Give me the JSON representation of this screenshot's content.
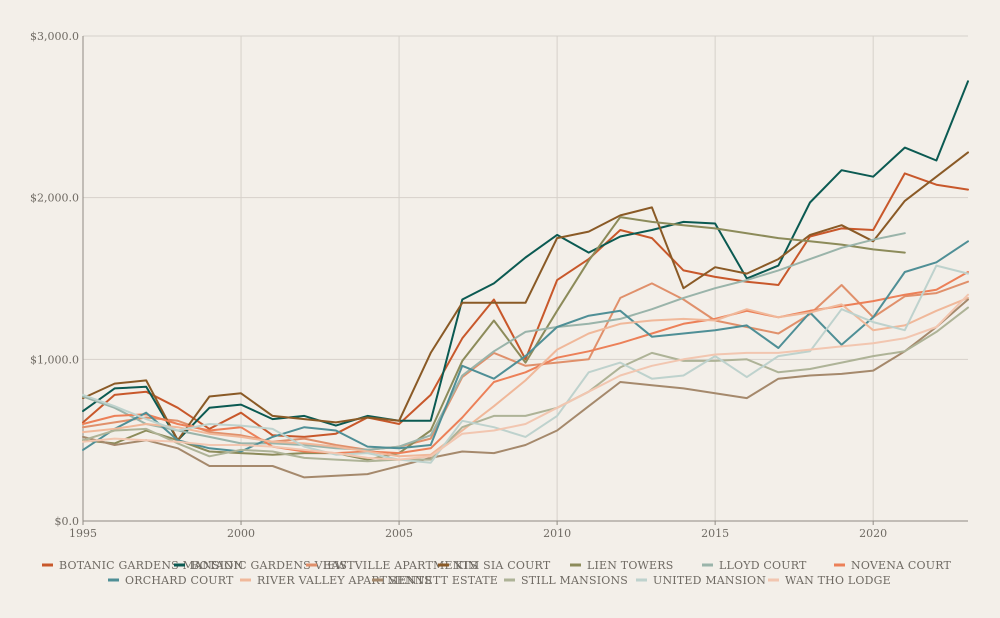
{
  "chart_data": {
    "type": "line",
    "title": "",
    "xlabel": "",
    "ylabel": "",
    "xlim": [
      1995,
      2023
    ],
    "ylim": [
      0,
      3000
    ],
    "x_ticks": [
      1995,
      2000,
      2005,
      2010,
      2015,
      2020
    ],
    "x_tick_labels": [
      "1995",
      "2000",
      "2005",
      "2010",
      "2015",
      "2020"
    ],
    "y_ticks": [
      0,
      1000,
      2000,
      3000
    ],
    "y_tick_labels": [
      "$0.0",
      "$1,000.0",
      "$2,000.0",
      "$3,000.0"
    ],
    "grid": true,
    "legend_position": "bottom",
    "x": [
      1995,
      1996,
      1997,
      1998,
      1999,
      2000,
      2001,
      2002,
      2003,
      2004,
      2005,
      2006,
      2007,
      2008,
      2009,
      2010,
      2011,
      2012,
      2013,
      2014,
      2015,
      2016,
      2017,
      2018,
      2019,
      2020,
      2021,
      2022,
      2023
    ],
    "series": [
      {
        "name": "BOTANIC GARDENS MANSION",
        "color": "#c8582b",
        "values": [
          610,
          780,
          800,
          700,
          570,
          670,
          530,
          520,
          540,
          640,
          600,
          780,
          1130,
          1370,
          1000,
          1490,
          1620,
          1800,
          1750,
          1550,
          1510,
          1480,
          1460,
          1760,
          1810,
          1800,
          2150,
          2080,
          2050
        ]
      },
      {
        "name": "BOTANIC GARDENS VIEW",
        "color": "#0b5a52",
        "values": [
          680,
          820,
          830,
          500,
          700,
          720,
          630,
          650,
          590,
          650,
          620,
          620,
          1370,
          1470,
          1630,
          1770,
          1660,
          1760,
          1800,
          1850,
          1840,
          1500,
          1580,
          1970,
          2170,
          2130,
          2310,
          2230,
          2720
        ]
      },
      {
        "name": "EASTVILLE APARTMENTS",
        "color": "#e0906b",
        "values": [
          580,
          610,
          640,
          620,
          550,
          530,
          490,
          510,
          470,
          440,
          460,
          510,
          890,
          1040,
          960,
          980,
          1000,
          1380,
          1470,
          1370,
          1240,
          1200,
          1160,
          1280,
          1460,
          1260,
          1390,
          1410,
          1480
        ]
      },
      {
        "name": "KIM SIA COURT",
        "color": "#8a5a26",
        "values": [
          760,
          850,
          870,
          500,
          770,
          790,
          650,
          630,
          610,
          640,
          620,
          1040,
          1350,
          1350,
          1350,
          1750,
          1790,
          1890,
          1940,
          1440,
          1570,
          1530,
          1620,
          1770,
          1830,
          1730,
          1980,
          2130,
          2280
        ]
      },
      {
        "name": "LIEN TOWERS",
        "color": "#8c8b5a",
        "values": [
          500,
          480,
          560,
          500,
          430,
          420,
          410,
          420,
          420,
          380,
          420,
          560,
          990,
          1240,
          980,
          1300,
          1610,
          1880,
          1850,
          1830,
          1810,
          1780,
          1750,
          1730,
          1710,
          1680,
          1660,
          null,
          null
        ]
      },
      {
        "name": "LLOYD COURT",
        "color": "#9ab4aa",
        "values": [
          770,
          700,
          600,
          560,
          520,
          480,
          480,
          470,
          450,
          440,
          460,
          530,
          900,
          1050,
          1170,
          1200,
          1220,
          1250,
          1310,
          1380,
          1440,
          1490,
          1550,
          1620,
          1690,
          1740,
          1780,
          null,
          null
        ]
      },
      {
        "name": "NOVENA COURT",
        "color": "#ec8058",
        "values": [
          600,
          650,
          660,
          600,
          560,
          580,
          460,
          430,
          420,
          430,
          420,
          450,
          640,
          860,
          920,
          1010,
          1050,
          1100,
          1160,
          1220,
          1250,
          1300,
          1260,
          1300,
          1330,
          1360,
          1400,
          1430,
          1540
        ]
      },
      {
        "name": "ORCHARD COURT",
        "color": "#4f8f96",
        "values": [
          440,
          570,
          670,
          500,
          450,
          430,
          520,
          580,
          560,
          460,
          450,
          470,
          960,
          880,
          1020,
          1200,
          1270,
          1300,
          1140,
          1160,
          1180,
          1210,
          1070,
          1290,
          1090,
          1260,
          1540,
          1600,
          1730
        ]
      },
      {
        "name": "RIVER VALLEY APARTMENTS",
        "color": "#f0b89a",
        "values": [
          550,
          570,
          600,
          580,
          540,
          520,
          490,
          480,
          460,
          430,
          400,
          410,
          560,
          710,
          870,
          1060,
          1160,
          1220,
          1240,
          1250,
          1240,
          1310,
          1260,
          1290,
          1340,
          1180,
          1210,
          1300,
          1380
        ]
      },
      {
        "name": "SENNETT ESTATE",
        "color": "#a5896c",
        "values": [
          520,
          470,
          500,
          450,
          340,
          340,
          340,
          270,
          280,
          290,
          340,
          390,
          430,
          420,
          470,
          560,
          710,
          860,
          840,
          820,
          790,
          760,
          880,
          900,
          910,
          930,
          1050,
          1200,
          1370
        ]
      },
      {
        "name": "STILL MANSIONS",
        "color": "#aeb397",
        "values": [
          500,
          560,
          570,
          480,
          400,
          440,
          430,
          390,
          380,
          370,
          380,
          380,
          580,
          650,
          650,
          700,
          800,
          950,
          1040,
          990,
          990,
          1000,
          920,
          940,
          980,
          1020,
          1050,
          1170,
          1320
        ]
      },
      {
        "name": "UNITED MANSION",
        "color": "#bed2cd",
        "values": [
          780,
          710,
          630,
          560,
          600,
          590,
          570,
          460,
          410,
          420,
          380,
          360,
          620,
          580,
          520,
          650,
          920,
          980,
          880,
          900,
          1020,
          890,
          1020,
          1050,
          1310,
          1230,
          1180,
          1580,
          1530
        ]
      },
      {
        "name": "WAN THO LODGE",
        "color": "#f2c6b0",
        "values": [
          490,
          510,
          500,
          490,
          470,
          470,
          460,
          440,
          420,
          390,
          380,
          400,
          540,
          560,
          600,
          700,
          800,
          900,
          960,
          1000,
          1030,
          1040,
          1040,
          1060,
          1080,
          1100,
          1130,
          1200,
          1400
        ]
      }
    ]
  }
}
